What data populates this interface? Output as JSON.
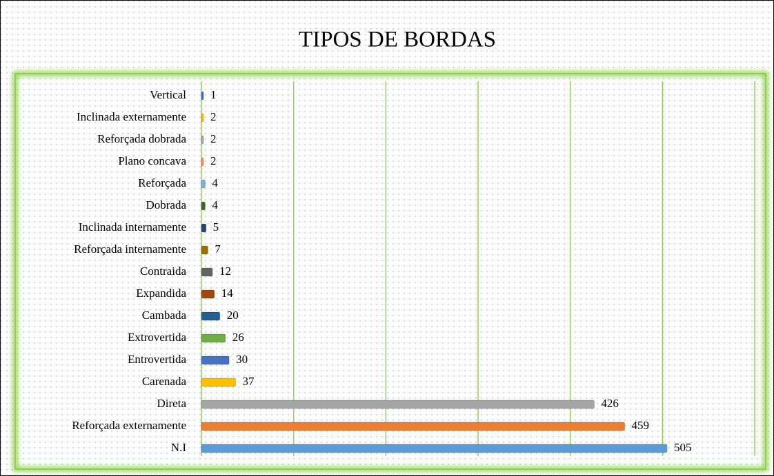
{
  "chart_data": {
    "type": "hbar",
    "title": "TIPOS DE BORDAS",
    "categories": [
      "Vertical",
      "Inclinada externamente",
      "Reforçada dobrada",
      "Plano concava",
      "Reforçada",
      "Dobrada",
      "Inclinada internamente",
      "Reforçada internamente",
      "Contraida",
      "Expandida",
      "Cambada",
      "Extrovertida",
      "Entrovertida",
      "Carenada",
      "Direta",
      "Reforçada externamente",
      "N.I"
    ],
    "values": [
      1,
      2,
      2,
      2,
      4,
      4,
      5,
      7,
      12,
      14,
      20,
      26,
      30,
      37,
      426,
      459,
      505
    ],
    "colors": [
      "#4472c4",
      "#ffc000",
      "#a5a5a5",
      "#f1975a",
      "#7cafdd",
      "#43682b",
      "#264478",
      "#997300",
      "#636363",
      "#9e480e",
      "#255e91",
      "#70ad47",
      "#4472c4",
      "#ffc000",
      "#a5a5a5",
      "#ed7d31",
      "#5b9bd5"
    ],
    "xlim": [
      0,
      600
    ],
    "xticks": [
      0,
      100,
      200,
      300,
      400,
      500,
      600
    ],
    "grid": true
  }
}
